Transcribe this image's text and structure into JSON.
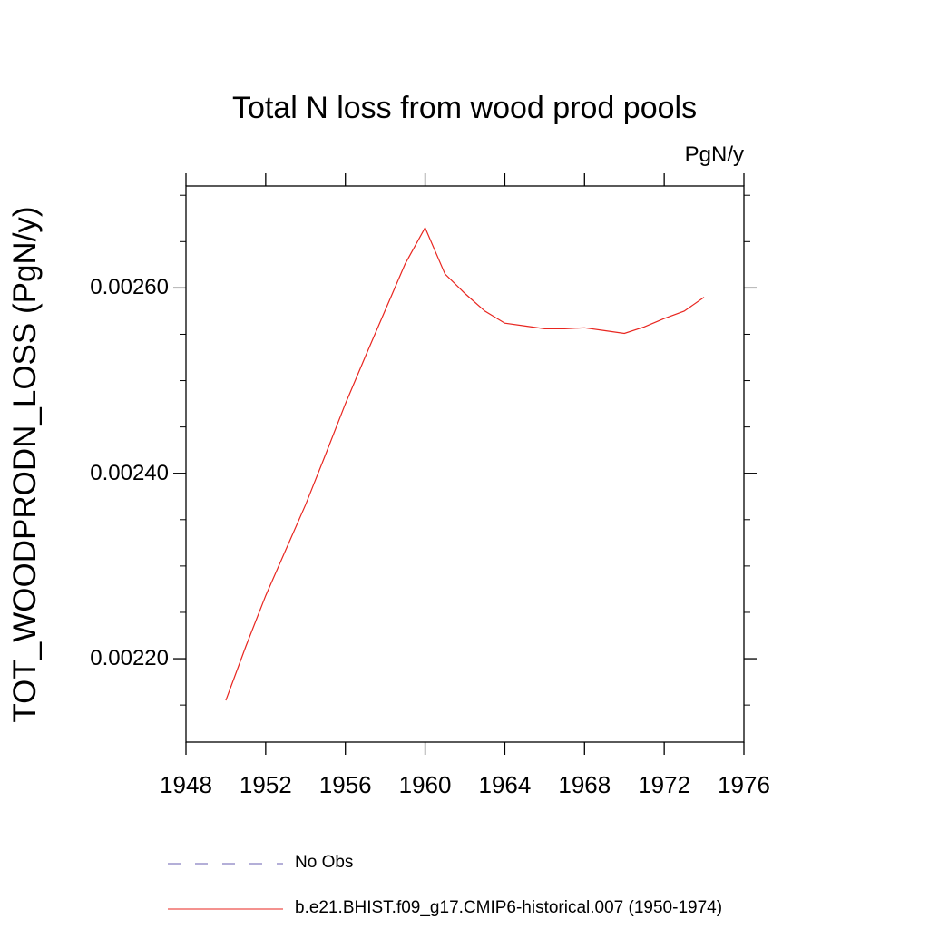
{
  "chart_data": {
    "type": "line",
    "title": "Total N loss from wood prod pools",
    "units_label": "PgN/y",
    "ylabel": "TOT_WOODPRODN_LOSS  (PgN/y)",
    "xlabel": "",
    "xlim": [
      1948,
      1976
    ],
    "ylim": [
      0.00211,
      0.00271
    ],
    "x_ticks": [
      "1948",
      "1952",
      "1956",
      "1960",
      "1964",
      "1968",
      "1972",
      "1976"
    ],
    "x_tick_values": [
      1948,
      1952,
      1956,
      1960,
      1964,
      1968,
      1972,
      1976
    ],
    "y_ticks": [
      "0.00220",
      "0.00240",
      "0.00260"
    ],
    "y_tick_values": [
      0.0022,
      0.0024,
      0.0026
    ],
    "y_minor_step": 5e-05,
    "x": [
      1950,
      1951,
      1952,
      1953,
      1954,
      1955,
      1956,
      1957,
      1958,
      1959,
      1960,
      1961,
      1962,
      1963,
      1964,
      1965,
      1966,
      1967,
      1968,
      1969,
      1970,
      1971,
      1972,
      1973,
      1974
    ],
    "series": [
      {
        "name": "b.e21.BHIST.f09_g17.CMIP6-historical.007 (1950-1974)",
        "color": "#e8251f",
        "values": [
          0.002155,
          0.002213,
          0.002268,
          0.002317,
          0.002366,
          0.00242,
          0.002475,
          0.002526,
          0.002576,
          0.002626,
          0.002665,
          0.002615,
          0.002594,
          0.002575,
          0.002562,
          0.002559,
          0.002556,
          0.002556,
          0.002557,
          0.002554,
          0.002551,
          0.002558,
          0.002567,
          0.002575,
          0.00259
        ]
      }
    ],
    "legend": [
      {
        "label": "No Obs",
        "color": "#6a5fb0",
        "style": "dashed"
      },
      {
        "label": "b.e21.BHIST.f09_g17.CMIP6-historical.007 (1950-1974)",
        "color": "#e8251f",
        "style": "solid"
      }
    ],
    "legend_placement": "bottom",
    "grid": false
  }
}
